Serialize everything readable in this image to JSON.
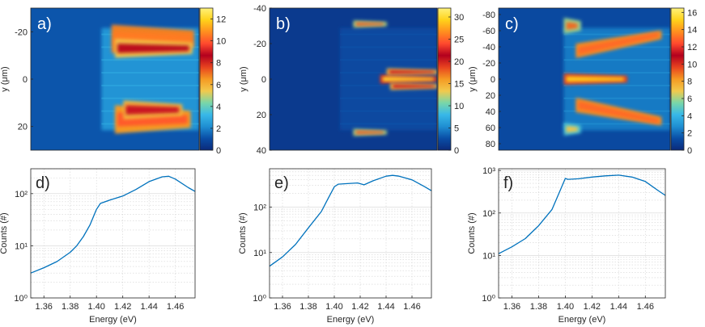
{
  "colors": {
    "line": "#0072bd",
    "axis": "#262626",
    "grid": "#d4d4d4",
    "label_text": "#262626",
    "panel_letter": "#ffffff",
    "panel_letter_dark": "#262626"
  },
  "colormap": [
    "#0b2a7a",
    "#0a4ea6",
    "#1f8fd2",
    "#38b8e8",
    "#7ad7a8",
    "#f2c94c",
    "#f59a23",
    "#e8431f",
    "#b3001e",
    "#ff4a2e",
    "#ff8f1f",
    "#ffd21a",
    "#fff27a"
  ],
  "chart_data": [
    {
      "id": "a",
      "type": "heatmap",
      "panel_label": "a)",
      "ylabel": "y (μm)",
      "ylim": [
        -30,
        30
      ],
      "yticks": [
        -20,
        0,
        20
      ],
      "yticklabels": [
        "-20",
        "0",
        "20"
      ],
      "colorbar": {
        "range": [
          0,
          13
        ],
        "ticks": [
          0,
          2,
          4,
          6,
          8,
          10,
          12
        ],
        "ticklabels": [
          "0",
          "2",
          "4",
          "6",
          "8",
          "10",
          "12"
        ]
      },
      "lobes": [
        {
          "x0": 0.48,
          "x1": 0.97,
          "y": -17,
          "h": 6,
          "v": 10.5
        },
        {
          "x0": 0.5,
          "x1": 0.96,
          "y": -13,
          "h": 4,
          "v": 8.5
        },
        {
          "x0": 0.5,
          "x1": 0.95,
          "y": 17,
          "h": 6,
          "v": 10
        },
        {
          "x0": 0.55,
          "x1": 0.9,
          "y": 13,
          "h": 4,
          "v": 9
        }
      ]
    },
    {
      "id": "b",
      "type": "heatmap",
      "panel_label": "b)",
      "ylabel": "y (μm)",
      "ylim": [
        -40,
        40
      ],
      "yticks": [
        -40,
        -20,
        0,
        20,
        40
      ],
      "yticklabels": [
        "-40",
        "-20",
        "0",
        "20",
        "40"
      ],
      "colorbar": {
        "range": [
          0,
          32
        ],
        "ticks": [
          0,
          5,
          10,
          15,
          20,
          25,
          30
        ],
        "ticklabels": [
          "0",
          "5",
          "10",
          "15",
          "20",
          "25",
          "30"
        ]
      },
      "lobes": [
        {
          "x0": 0.66,
          "x1": 1.0,
          "y": 0,
          "h": 2.5,
          "v": 30
        },
        {
          "x0": 0.7,
          "x1": 1.0,
          "y": -4,
          "h": 2,
          "v": 22
        },
        {
          "x0": 0.72,
          "x1": 1.0,
          "y": 4,
          "h": 2,
          "v": 22
        },
        {
          "x0": 0.5,
          "x1": 0.7,
          "y": -31,
          "h": 2,
          "v": 18
        },
        {
          "x0": 0.5,
          "x1": 0.7,
          "y": 30,
          "h": 2,
          "v": 18
        }
      ]
    },
    {
      "id": "c",
      "type": "heatmap",
      "panel_label": "c)",
      "ylabel": "y (μm)",
      "ylim": [
        -88,
        88
      ],
      "yticks": [
        -80,
        -60,
        -40,
        -20,
        0,
        20,
        40,
        60,
        80
      ],
      "yticklabels": [
        "-80",
        "-60",
        "-40",
        "-20",
        "0",
        "20",
        "40",
        "60",
        "80"
      ],
      "colorbar": {
        "range": [
          0,
          16.5
        ],
        "ticks": [
          0,
          2,
          4,
          6,
          8,
          10,
          12,
          14,
          16
        ],
        "ticklabels": [
          "0",
          "2",
          "4",
          "6",
          "8",
          "10",
          "12",
          "14",
          "16"
        ]
      },
      "lobes": [
        {
          "x0": 0.38,
          "x1": 0.75,
          "y": 0,
          "h": 7,
          "v": 15
        },
        {
          "x0": 0.38,
          "x1": 0.48,
          "y": -66,
          "h": 10,
          "v": 9
        },
        {
          "x0": 0.38,
          "x1": 0.48,
          "y": 62,
          "h": 8,
          "v": 7
        },
        {
          "x0": 0.45,
          "x1": 0.95,
          "y": -35,
          "h": 9,
          "v": 13,
          "slope": -20
        },
        {
          "x0": 0.45,
          "x1": 0.95,
          "y": 32,
          "h": 9,
          "v": 13,
          "slope": 20
        }
      ]
    },
    {
      "id": "d",
      "type": "line",
      "panel_label": "d)",
      "xlabel": "Energy (eV)",
      "ylabel": "Counts (#)",
      "yscale": "log",
      "xlim": [
        1.35,
        1.475
      ],
      "ylim": [
        1,
        300
      ],
      "xticks": [
        1.36,
        1.38,
        1.4,
        1.42,
        1.44,
        1.46
      ],
      "xticklabels": [
        "1.36",
        "1.38",
        "1.40",
        "1.42",
        "1.44",
        "1.46"
      ],
      "yticks": [
        1,
        10,
        100
      ],
      "yticklabels": [
        "10⁰",
        "10¹",
        "10²"
      ],
      "x": [
        1.35,
        1.36,
        1.37,
        1.38,
        1.385,
        1.39,
        1.395,
        1.4,
        1.403,
        1.41,
        1.42,
        1.43,
        1.44,
        1.45,
        1.455,
        1.46,
        1.47,
        1.475
      ],
      "y": [
        3,
        3.8,
        5,
        7.5,
        10,
        15,
        25,
        50,
        65,
        75,
        90,
        120,
        170,
        210,
        215,
        190,
        130,
        110
      ]
    },
    {
      "id": "e",
      "type": "line",
      "panel_label": "e)",
      "xlabel": "Energy (eV)",
      "ylabel": "Counts (#)",
      "yscale": "log",
      "xlim": [
        1.35,
        1.475
      ],
      "ylim": [
        1,
        700
      ],
      "xticks": [
        1.36,
        1.38,
        1.4,
        1.42,
        1.44,
        1.46
      ],
      "xticklabels": [
        "1.36",
        "1.38",
        "1.40",
        "1.42",
        "1.44",
        "1.46"
      ],
      "yticks": [
        1,
        10,
        100
      ],
      "yticklabels": [
        "10⁰",
        "10¹",
        "10²"
      ],
      "x": [
        1.35,
        1.36,
        1.37,
        1.38,
        1.39,
        1.395,
        1.4,
        1.403,
        1.41,
        1.418,
        1.423,
        1.43,
        1.44,
        1.445,
        1.45,
        1.46,
        1.47,
        1.475
      ],
      "y": [
        5,
        8,
        15,
        35,
        80,
        150,
        280,
        320,
        330,
        340,
        310,
        380,
        480,
        500,
        480,
        400,
        280,
        230
      ]
    },
    {
      "id": "f",
      "type": "line",
      "panel_label": "f)",
      "xlabel": "Energy (eV)",
      "ylabel": "Counts (#)",
      "yscale": "log",
      "xlim": [
        1.35,
        1.475
      ],
      "ylim": [
        1,
        1100
      ],
      "xticks": [
        1.36,
        1.38,
        1.4,
        1.42,
        1.44,
        1.46
      ],
      "xticklabels": [
        "1.36",
        "1.38",
        "1.40",
        "1.42",
        "1.44",
        "1.46"
      ],
      "yticks": [
        1,
        10,
        100,
        1000
      ],
      "yticklabels": [
        "10⁰",
        "10¹",
        "10²",
        "10³"
      ],
      "x": [
        1.35,
        1.36,
        1.37,
        1.38,
        1.39,
        1.395,
        1.4,
        1.402,
        1.41,
        1.42,
        1.43,
        1.44,
        1.45,
        1.46,
        1.47,
        1.475
      ],
      "y": [
        11,
        16,
        25,
        50,
        120,
        280,
        650,
        620,
        640,
        700,
        750,
        780,
        700,
        550,
        330,
        260
      ]
    }
  ]
}
